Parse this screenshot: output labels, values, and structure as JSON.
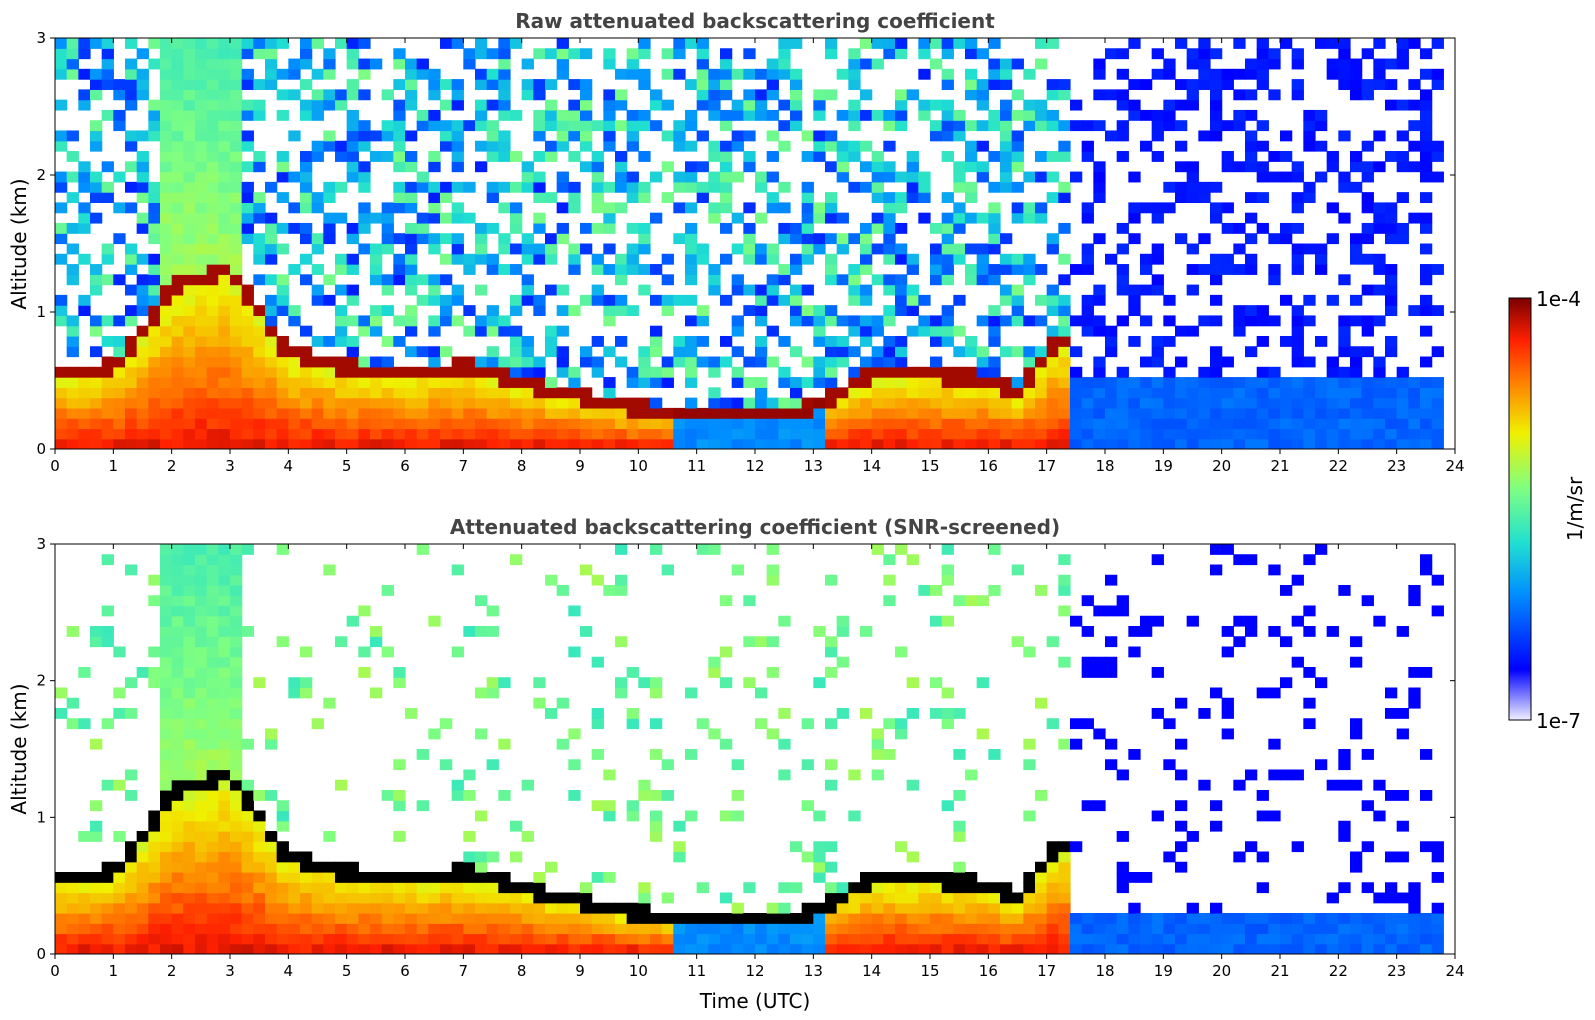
{
  "chart_data": [
    {
      "type": "heatmap",
      "title": "Raw attenuated backscattering coefficient",
      "xlabel": "",
      "ylabel": "Altitude (km)",
      "xlim": [
        0,
        24
      ],
      "ylim": [
        0,
        3
      ],
      "xticks": [
        "0",
        "1",
        "2",
        "3",
        "4",
        "5",
        "6",
        "7",
        "8",
        "9",
        "10",
        "11",
        "12",
        "13",
        "14",
        "15",
        "16",
        "17",
        "18",
        "19",
        "20",
        "21",
        "22",
        "23",
        "24"
      ],
      "yticks": [
        "0",
        "1",
        "2",
        "3"
      ],
      "layer_top_km": [
        {
          "t": 0.0,
          "h": 0.55
        },
        {
          "t": 1.0,
          "h": 0.6
        },
        {
          "t": 1.6,
          "h": 0.9
        },
        {
          "t": 2.0,
          "h": 1.2
        },
        {
          "t": 3.0,
          "h": 1.3
        },
        {
          "t": 4.0,
          "h": 0.7
        },
        {
          "t": 5.0,
          "h": 0.6
        },
        {
          "t": 6.0,
          "h": 0.55
        },
        {
          "t": 7.0,
          "h": 0.6
        },
        {
          "t": 8.0,
          "h": 0.48
        },
        {
          "t": 9.0,
          "h": 0.38
        },
        {
          "t": 10.0,
          "h": 0.3
        },
        {
          "t": 11.0,
          "h": 0.25
        },
        {
          "t": 12.0,
          "h": 0.25
        },
        {
          "t": 13.0,
          "h": 0.3
        },
        {
          "t": 14.0,
          "h": 0.55
        },
        {
          "t": 15.0,
          "h": 0.55
        },
        {
          "t": 16.0,
          "h": 0.5
        },
        {
          "t": 16.5,
          "h": 0.4
        },
        {
          "t": 17.2,
          "h": 0.8
        }
      ]
    },
    {
      "type": "heatmap",
      "title": "Attenuated backscattering coefficient (SNR-screened)",
      "xlabel": "Time (UTC)",
      "ylabel": "Altitude (km)",
      "xlim": [
        0,
        24
      ],
      "ylim": [
        0,
        3
      ],
      "xticks": [
        "0",
        "1",
        "2",
        "3",
        "4",
        "5",
        "6",
        "7",
        "8",
        "9",
        "10",
        "11",
        "12",
        "13",
        "14",
        "15",
        "16",
        "17",
        "18",
        "19",
        "20",
        "21",
        "22",
        "23",
        "24"
      ],
      "yticks": [
        "0",
        "1",
        "2",
        "3"
      ]
    }
  ],
  "colorbar": {
    "label": "1/m/sr",
    "max_label": "1e-4",
    "min_label": "1e-7",
    "scale": "log",
    "range": [
      1e-07,
      0.0001
    ],
    "colors": [
      "#e8e8ff",
      "#0000ff",
      "#0090ff",
      "#20e0d0",
      "#80ff80",
      "#f0f000",
      "#ff8000",
      "#ff2000",
      "#7a0000"
    ]
  }
}
